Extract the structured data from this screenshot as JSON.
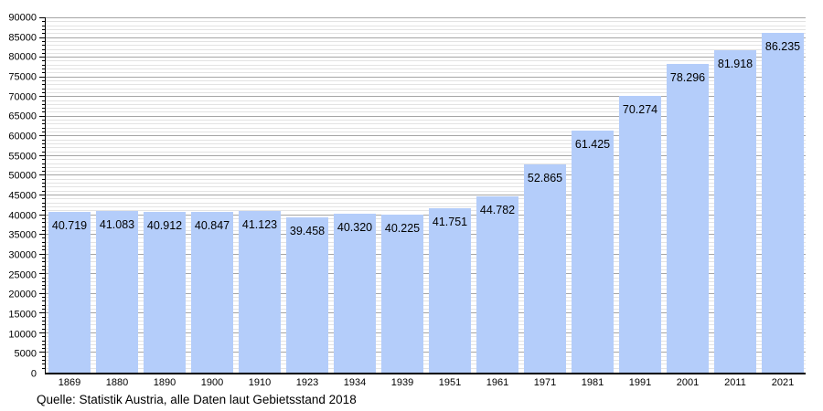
{
  "chart_data": {
    "type": "bar",
    "title": "",
    "xlabel": "",
    "ylabel": "",
    "categories": [
      "1869",
      "1880",
      "1890",
      "1900",
      "1910",
      "1923",
      "1934",
      "1939",
      "1951",
      "1961",
      "1971",
      "1981",
      "1991",
      "2001",
      "2011",
      "2021"
    ],
    "values": [
      40719,
      41083,
      40912,
      40847,
      41123,
      39458,
      40320,
      40225,
      41751,
      44782,
      52865,
      61425,
      70274,
      78296,
      81918,
      86235
    ],
    "bar_labels": [
      "40.719",
      "41.083",
      "40.912",
      "40.847",
      "41.123",
      "39.458",
      "40.320",
      "40.225",
      "41.751",
      "44.782",
      "52.865",
      "61.425",
      "70.274",
      "78.296",
      "81.918",
      "86.235"
    ],
    "ylim": [
      0,
      90000
    ],
    "ytick_step": 5000,
    "minor_tick_step": 1000,
    "yticks": [
      "0",
      "5000",
      "10000",
      "15000",
      "20000",
      "25000",
      "30000",
      "35000",
      "40000",
      "45000",
      "50000",
      "55000",
      "60000",
      "65000",
      "70000",
      "75000",
      "80000",
      "85000",
      "90000"
    ],
    "grid": "horizontal, major every 5000 and minor every 1000",
    "legend": "none",
    "source": "Quelle: Statistik Austria, alle Daten laut Gebietsstand 2018",
    "colors": {
      "bar_fill": "#b4cdfa",
      "major_grid": "#a5a5a5",
      "minor_grid": "#e3e3e3",
      "axis": "#000000",
      "label_text": "#000000",
      "background": "#ffffff"
    }
  }
}
